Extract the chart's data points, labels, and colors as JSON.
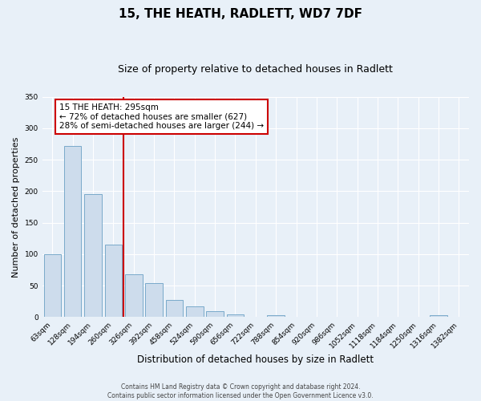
{
  "title": "15, THE HEATH, RADLETT, WD7 7DF",
  "subtitle": "Size of property relative to detached houses in Radlett",
  "xlabel": "Distribution of detached houses by size in Radlett",
  "ylabel": "Number of detached properties",
  "bin_labels": [
    "63sqm",
    "128sqm",
    "194sqm",
    "260sqm",
    "326sqm",
    "392sqm",
    "458sqm",
    "524sqm",
    "590sqm",
    "656sqm",
    "722sqm",
    "788sqm",
    "854sqm",
    "920sqm",
    "986sqm",
    "1052sqm",
    "1118sqm",
    "1184sqm",
    "1250sqm",
    "1316sqm",
    "1382sqm"
  ],
  "bar_values": [
    100,
    272,
    195,
    115,
    68,
    54,
    27,
    17,
    9,
    4,
    0,
    3,
    0,
    1,
    1,
    1,
    0,
    0,
    0,
    3,
    0
  ],
  "bar_color": "#cddcec",
  "bar_edge_color": "#7aaaca",
  "vline_x": 3.5,
  "vline_color": "#cc0000",
  "annotation_text": "15 THE HEATH: 295sqm\n← 72% of detached houses are smaller (627)\n28% of semi-detached houses are larger (244) →",
  "annotation_box_facecolor": "#ffffff",
  "annotation_box_edgecolor": "#cc0000",
  "footer_line1": "Contains HM Land Registry data © Crown copyright and database right 2024.",
  "footer_line2": "Contains public sector information licensed under the Open Government Licence v3.0.",
  "ylim": [
    0,
    350
  ],
  "yticks": [
    0,
    50,
    100,
    150,
    200,
    250,
    300,
    350
  ],
  "background_color": "#e8f0f8",
  "plot_bg_color": "#e8f0f8",
  "title_fontsize": 11,
  "subtitle_fontsize": 9,
  "ylabel_fontsize": 8,
  "xlabel_fontsize": 8.5,
  "tick_fontsize": 6.5,
  "annotation_fontsize": 7.5,
  "footer_fontsize": 5.5
}
